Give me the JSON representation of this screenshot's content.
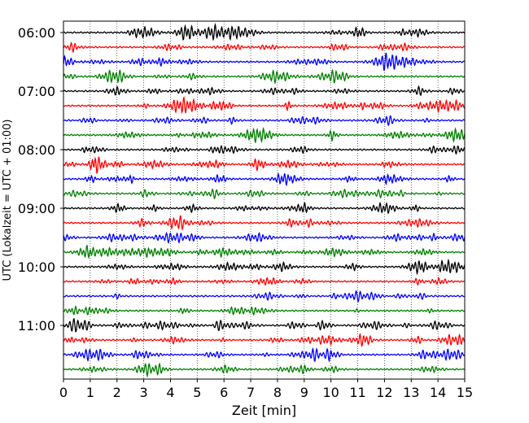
{
  "chart_data": {
    "type": "line",
    "title": "",
    "xlabel": "Zeit  [min]",
    "ylabel": "UTC (Lokalzeit = UTC + 01:00)",
    "xlim": [
      0,
      15
    ],
    "xticks": [
      0,
      1,
      2,
      3,
      4,
      5,
      6,
      7,
      8,
      9,
      10,
      11,
      12,
      13,
      14,
      15
    ],
    "y_tick_labels": [
      "06:00",
      "07:00",
      "08:00",
      "09:00",
      "10:00",
      "11:00"
    ],
    "trace_interval_min": 15,
    "trace_count": 24,
    "first_trace_utc": "06:00",
    "last_trace_utc": "11:45",
    "trace_colors": [
      "#000000",
      "#ff0000",
      "#0000ff",
      "#008000"
    ],
    "grid": "vertical dotted lines at each minute",
    "legend": "none"
  }
}
